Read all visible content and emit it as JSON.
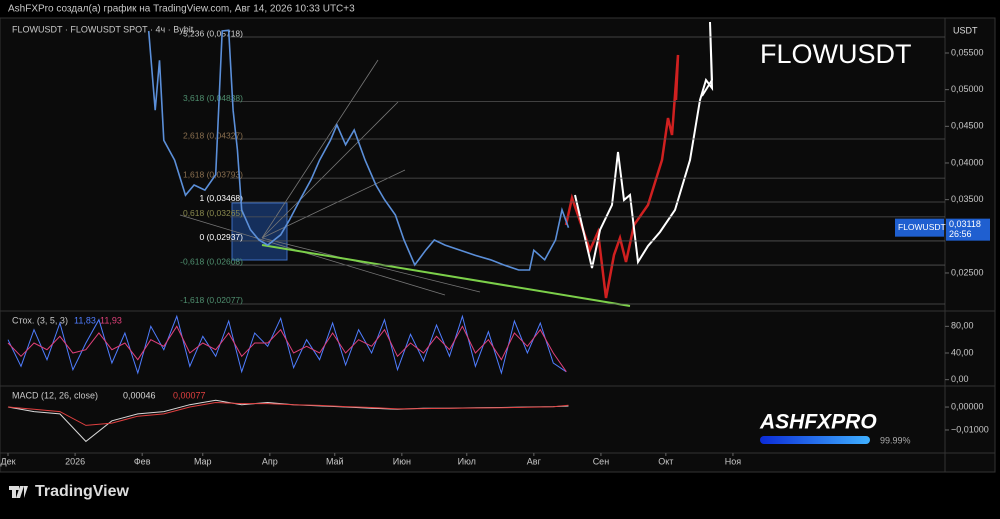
{
  "header": "AshFXPro создал(а) график на TradingView.com, Авг 14, 2026 10:33 UTC+3",
  "footer": "TradingView",
  "logo": {
    "text": "ASHFXPRO",
    "progress": 99.99,
    "progress_label": "99.99%"
  },
  "chart_data": [
    {
      "type": "line",
      "title": "FLOWUSDT",
      "legend": "FLOWUSDT · FLOWUSDT SPOT · 4ч · Bybit",
      "currency": "USDT",
      "x": [
        65,
        68,
        70,
        72,
        77,
        82,
        86,
        91,
        96,
        99,
        102,
        104,
        106,
        108,
        112,
        116,
        120,
        126,
        130,
        135,
        140,
        144,
        149,
        152,
        156,
        160,
        165,
        170,
        174,
        179,
        183,
        188,
        193,
        197,
        202,
        209,
        216,
        223,
        229,
        236,
        241,
        243,
        248,
        253,
        256,
        259
      ],
      "series": [
        {
          "name": "FLOWUSDT",
          "color": "#5b8fd9",
          "last_label": "0,03118",
          "countdown": "26:56",
          "values": [
            0.058,
            0.0472,
            0.054,
            0.0431,
            0.0404,
            0.0356,
            0.037,
            0.0363,
            0.0384,
            0.058,
            0.0581,
            0.0472,
            0.0418,
            0.0336,
            0.0309,
            0.0295,
            0.0288,
            0.0302,
            0.0322,
            0.035,
            0.0377,
            0.0404,
            0.0431,
            0.0452,
            0.0425,
            0.0445,
            0.0404,
            0.037,
            0.035,
            0.0329,
            0.0295,
            0.0261,
            0.0281,
            0.0295,
            0.0288,
            0.0281,
            0.0274,
            0.0268,
            0.0261,
            0.0254,
            0.0254,
            0.0281,
            0.0268,
            0.0295,
            0.0336,
            0.03118
          ]
        }
      ],
      "xlim": [
        -3.7,
        433
      ],
      "ylim": [
        0.01995,
        0.0595
      ],
      "yticks": [
        {
          "value": 0.025,
          "label": "0,02500"
        },
        {
          "value": 0.035,
          "label": "0,03500"
        },
        {
          "value": 0.04,
          "label": "0,04000"
        },
        {
          "value": 0.045,
          "label": "0,04500"
        },
        {
          "value": 0.05,
          "label": "0,05000"
        },
        {
          "value": 0.055,
          "label": "0,05500"
        }
      ],
      "fib_levels": [
        {
          "label": "5,236 (0,05718)",
          "price": 0.05718,
          "color": "#d0d0d0"
        },
        {
          "label": "3,618 (0,04838)",
          "price": 0.04838,
          "color": "#4f8f6f"
        },
        {
          "label": "2,618 (0,04327)",
          "price": 0.04327,
          "color": "#8a6f4f"
        },
        {
          "label": "1,618 (0,03793)",
          "price": 0.03793,
          "color": "#8a6f4f"
        },
        {
          "label": "1 (0,03468)",
          "price": 0.03468,
          "color": "#ffffff"
        },
        {
          "label": "0,618 (0,03265)",
          "price": 0.03265,
          "color": "#8a8a4f"
        },
        {
          "label": "0 (0,02937)",
          "price": 0.02937,
          "color": "#ffffff"
        },
        {
          "label": "-0,618 (0,02608)",
          "price": 0.02608,
          "color": "#4f8f6f"
        },
        {
          "label": "-1,618 (0,02077)",
          "price": 0.02077,
          "color": "#4f8f6f"
        }
      ]
    },
    {
      "type": "line",
      "title": "Стох. (3, 5, 3)",
      "x": [
        0,
        6,
        12,
        18,
        24,
        30,
        36,
        42,
        48,
        54,
        60,
        66,
        72,
        78,
        84,
        90,
        96,
        102,
        108,
        114,
        120,
        126,
        132,
        138,
        144,
        150,
        156,
        162,
        168,
        174,
        180,
        186,
        192,
        198,
        204,
        210,
        216,
        222,
        228,
        234,
        240,
        246,
        252,
        258
      ],
      "series": [
        {
          "color": "#4f7dff",
          "last_label": "11,83",
          "values": [
            60,
            20,
            75,
            30,
            85,
            15,
            55,
            90,
            25,
            70,
            10,
            80,
            45,
            95,
            20,
            65,
            35,
            88,
            12,
            70,
            50,
            92,
            18,
            60,
            30,
            85,
            22,
            75,
            40,
            90,
            15,
            68,
            28,
            82,
            35,
            95,
            20,
            72,
            10,
            88,
            40,
            85,
            25,
            11.83
          ]
        },
        {
          "color": "#e0407a",
          "last_label": "11,93",
          "values": [
            55,
            35,
            55,
            45,
            65,
            40,
            45,
            70,
            45,
            55,
            30,
            60,
            50,
            80,
            40,
            55,
            45,
            70,
            35,
            55,
            55,
            75,
            40,
            50,
            40,
            70,
            40,
            60,
            50,
            75,
            35,
            55,
            40,
            65,
            45,
            80,
            40,
            60,
            30,
            70,
            50,
            75,
            40,
            11.93
          ]
        }
      ],
      "xlim": [
        -3.7,
        433
      ],
      "ylim": [
        -8,
        100
      ],
      "yticks": [
        {
          "value": 0,
          "label": "0,00"
        },
        {
          "value": 40,
          "label": "40,00"
        },
        {
          "value": 80,
          "label": "80,00"
        }
      ]
    },
    {
      "type": "line",
      "title": "MACD (12, 26, close)",
      "x": [
        0,
        12,
        24,
        36,
        48,
        60,
        72,
        84,
        96,
        108,
        120,
        132,
        144,
        156,
        168,
        180,
        192,
        204,
        216,
        228,
        240,
        252,
        259
      ],
      "series": [
        {
          "color": "#d8d8d8",
          "last_label": "0,00046",
          "values": [
            0,
            -0.002,
            -0.003,
            -0.015,
            -0.006,
            -0.003,
            -0.002,
            0.001,
            0.003,
            0.001,
            0.002,
            0.001,
            0.0005,
            0,
            -0.0005,
            -0.001,
            -0.0005,
            -0.0005,
            -0.0003,
            -0.0002,
            0,
            0.0002,
            0.00046
          ]
        },
        {
          "color": "#e04040",
          "last_label": "0,00077",
          "values": [
            0,
            -0.001,
            -0.002,
            -0.008,
            -0.007,
            -0.004,
            -0.003,
            0,
            0.002,
            0.0015,
            0.0015,
            0.001,
            0.0007,
            0.0002,
            -0.0002,
            -0.0008,
            -0.0007,
            -0.0005,
            -0.0004,
            -0.0003,
            -0.0001,
            0.0001,
            0.00077
          ]
        }
      ],
      "xlim": [
        -3.7,
        433
      ],
      "ylim": [
        -0.0196,
        0.0083
      ],
      "xticks": [
        {
          "value": 0,
          "label": "Дек"
        },
        {
          "value": 31,
          "label": "2026"
        },
        {
          "value": 62,
          "label": "Фев"
        },
        {
          "value": 90,
          "label": "Мар"
        },
        {
          "value": 121,
          "label": "Апр"
        },
        {
          "value": 151,
          "label": "Май"
        },
        {
          "value": 182,
          "label": "Июн"
        },
        {
          "value": 212,
          "label": "Июл"
        },
        {
          "value": 243,
          "label": "Авг"
        },
        {
          "value": 274,
          "label": "Сен"
        },
        {
          "value": 304,
          "label": "Окт"
        },
        {
          "value": 335,
          "label": "Ноя"
        }
      ],
      "yticks": [
        {
          "value": -0.01,
          "label": "−0,01000"
        },
        {
          "value": 0,
          "label": "0,00000"
        }
      ]
    }
  ]
}
